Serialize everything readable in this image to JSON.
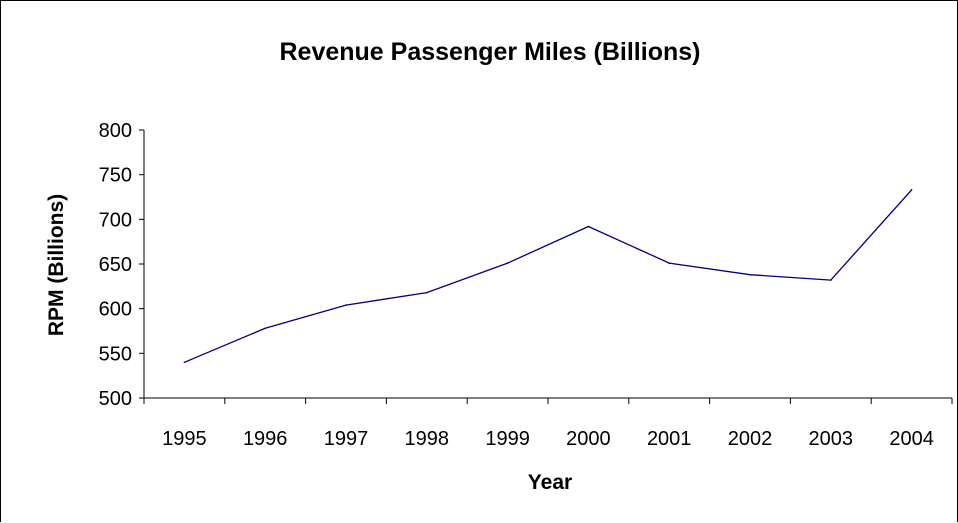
{
  "chart_data": {
    "type": "line",
    "title": "Revenue Passenger Miles (Billions)",
    "xlabel": "Year",
    "ylabel": "RPM (Billions)",
    "categories": [
      "1995",
      "1996",
      "1997",
      "1998",
      "1999",
      "2000",
      "2001",
      "2002",
      "2003",
      "2004"
    ],
    "series": [
      {
        "values": [
          540,
          578,
          604,
          618,
          651,
          692,
          651,
          638,
          632,
          733
        ]
      }
    ],
    "ylim": [
      500,
      800
    ],
    "yticks": [
      "500",
      "550",
      "600",
      "650",
      "700",
      "750",
      "800"
    ],
    "grid": false,
    "legend": "none",
    "line_color": "#000080"
  }
}
